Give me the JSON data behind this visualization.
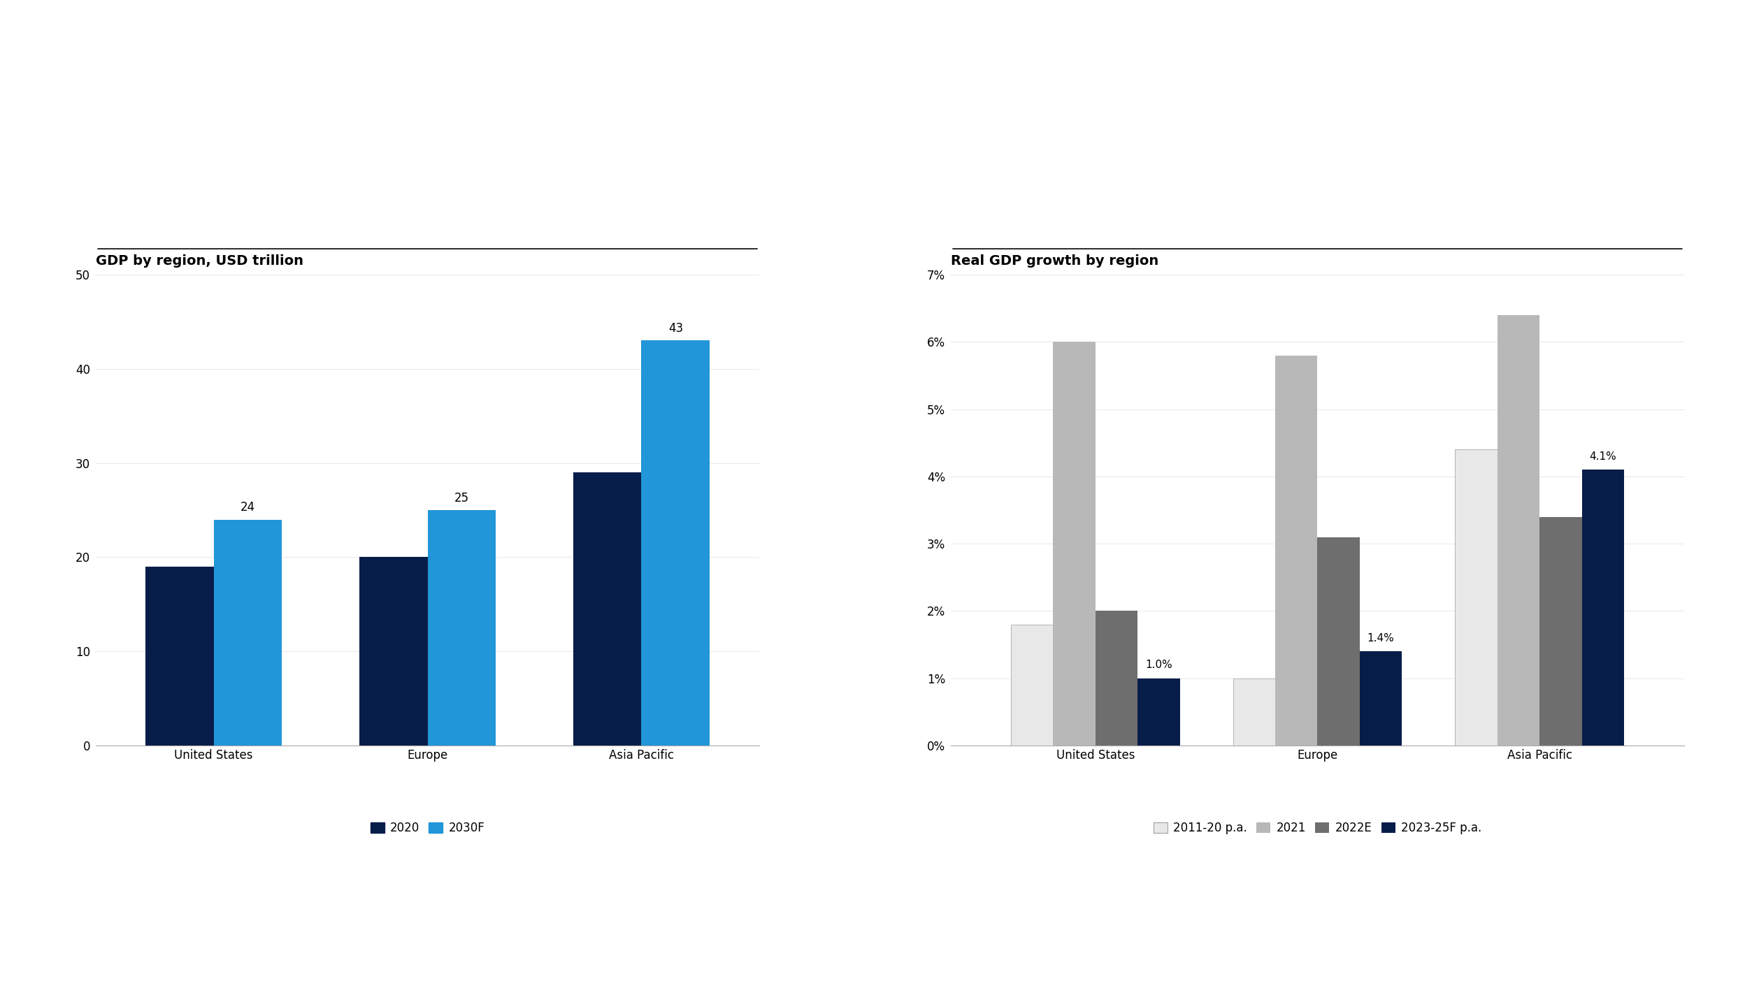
{
  "chart1": {
    "title": "GDP by region, USD trillion",
    "categories": [
      "United States",
      "Europe",
      "Asia Pacific"
    ],
    "series": {
      "2020": [
        19,
        20,
        29
      ],
      "2030F": [
        24,
        25,
        43
      ]
    },
    "colors": {
      "2020": "#071d49",
      "2030F": "#2196d8"
    },
    "ylim": [
      0,
      50
    ],
    "yticks": [
      0,
      10,
      20,
      30,
      40,
      50
    ],
    "bar_labels_2030f": [
      24,
      25,
      43
    ],
    "legend_labels": [
      "2020",
      "2030F"
    ]
  },
  "chart2": {
    "title": "Real GDP growth by region",
    "categories": [
      "United States",
      "Europe",
      "Asia Pacific"
    ],
    "series": {
      "2011-20 p.a.": [
        1.8,
        1.0,
        4.4
      ],
      "2021": [
        6.0,
        5.8,
        6.4
      ],
      "2022E": [
        2.0,
        3.1,
        3.4
      ],
      "2023-25F p.a.": [
        1.0,
        1.4,
        4.1
      ]
    },
    "colors": {
      "2011-20 p.a.": "#e8e8e8",
      "2021": "#b8b8b8",
      "2022E": "#6e6e6e",
      "2023-25F p.a.": "#071d49"
    },
    "ylim": [
      0,
      7
    ],
    "yticks": [
      0,
      1,
      2,
      3,
      4,
      5,
      6,
      7
    ],
    "yticklabels": [
      "0%",
      "1%",
      "2%",
      "3%",
      "4%",
      "5%",
      "6%",
      "7%"
    ],
    "annotations": {
      "United States": 1.0,
      "Europe": 1.4,
      "Asia Pacific": 4.1
    },
    "annotation_labels": {
      "United States": "1.0%",
      "Europe": "1.4%",
      "Asia Pacific": "4.1%"
    },
    "legend_labels": [
      "2011-20 p.a.",
      "2021",
      "2022E",
      "2023-25F p.a."
    ]
  },
  "background_color": "#ffffff",
  "title_fontsize": 14,
  "tick_fontsize": 12,
  "label_fontsize": 12,
  "annotation_fontsize": 11,
  "bar_label_fontsize": 12,
  "top_line_color": "#333333"
}
